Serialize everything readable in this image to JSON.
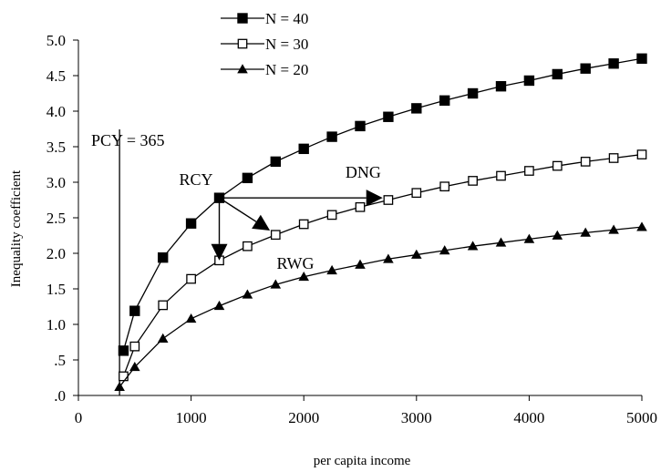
{
  "chart_data": {
    "type": "line",
    "title": "",
    "xlabel": "per capita income",
    "ylabel": "Inequality coefficient",
    "xlim": [
      0,
      5000
    ],
    "ylim": [
      0,
      5.0
    ],
    "x_ticks": [
      0,
      1000,
      2000,
      3000,
      4000,
      5000
    ],
    "x_tick_labels": [
      "0",
      "1000",
      "2000",
      "3000",
      "4000",
      "5000"
    ],
    "y_ticks": [
      0,
      0.5,
      1.0,
      1.5,
      2.0,
      2.5,
      3.0,
      3.5,
      4.0,
      4.5,
      5.0
    ],
    "y_tick_labels": [
      ".0",
      ".5",
      "1.0",
      "1.5",
      "2.0",
      "2.5",
      "3.0",
      "3.5",
      "4.0",
      "4.5",
      "5.0"
    ],
    "grid": false,
    "legend_position": "top-center",
    "x": [
      365,
      400,
      500,
      750,
      1000,
      1250,
      1500,
      1750,
      2000,
      2250,
      2500,
      2750,
      3000,
      3250,
      3500,
      3750,
      4000,
      4250,
      4500,
      4750,
      5000
    ],
    "series": [
      {
        "name": "N = 40",
        "marker": "filled-square",
        "values": [
          null,
          0.63,
          1.19,
          1.94,
          2.42,
          2.78,
          3.06,
          3.29,
          3.47,
          3.64,
          3.79,
          3.92,
          4.04,
          4.15,
          4.25,
          4.35,
          4.43,
          4.52,
          4.6,
          4.67,
          4.74
        ]
      },
      {
        "name": "N = 30",
        "marker": "open-square",
        "values": [
          null,
          0.27,
          0.69,
          1.27,
          1.64,
          1.9,
          2.1,
          2.26,
          2.41,
          2.54,
          2.65,
          2.75,
          2.85,
          2.94,
          3.02,
          3.09,
          3.16,
          3.23,
          3.29,
          3.34,
          3.39
        ]
      },
      {
        "name": "N = 20",
        "marker": "filled-triangle",
        "values": [
          0.12,
          null,
          0.4,
          0.8,
          1.08,
          1.26,
          1.42,
          1.56,
          1.67,
          1.76,
          1.84,
          1.92,
          1.98,
          2.04,
          2.1,
          2.15,
          2.2,
          2.25,
          2.29,
          2.33,
          2.37
        ]
      }
    ],
    "vertical_line": {
      "x": 365,
      "label": "PCY = 365"
    },
    "annotations": [
      {
        "label": "RCY",
        "x": 1250,
        "y": 2.78
      },
      {
        "label": "DNG",
        "from": [
          1250,
          2.78
        ],
        "to": [
          2700,
          2.78
        ]
      },
      {
        "label": "RWG",
        "from": [
          1250,
          2.78
        ],
        "to": [
          1700,
          2.32
        ]
      },
      {
        "label": "",
        "from": [
          1250,
          2.78
        ],
        "to": [
          1250,
          1.9
        ]
      }
    ]
  }
}
